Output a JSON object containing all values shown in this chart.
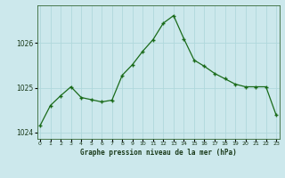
{
  "x": [
    0,
    1,
    2,
    3,
    4,
    5,
    6,
    7,
    8,
    9,
    10,
    11,
    12,
    13,
    14,
    15,
    16,
    17,
    18,
    19,
    20,
    21,
    22,
    23
  ],
  "y": [
    1024.15,
    1024.6,
    1024.82,
    1025.02,
    1024.78,
    1024.73,
    1024.68,
    1024.72,
    1025.28,
    1025.52,
    1025.82,
    1026.08,
    1026.45,
    1026.62,
    1026.1,
    1025.62,
    1025.48,
    1025.32,
    1025.2,
    1025.08,
    1025.02,
    1025.02,
    1025.02,
    1024.38
  ],
  "ylim": [
    1023.85,
    1026.85
  ],
  "yticks": [
    1024,
    1025,
    1026
  ],
  "xticks": [
    0,
    1,
    2,
    3,
    4,
    5,
    6,
    7,
    8,
    9,
    10,
    11,
    12,
    13,
    14,
    15,
    16,
    17,
    18,
    19,
    20,
    21,
    22,
    23
  ],
  "xlim": [
    -0.3,
    23.3
  ],
  "line_color": "#1a6b1a",
  "marker_color": "#1a6b1a",
  "bg_color": "#cce8ec",
  "grid_color": "#b0d8dc",
  "border_color": "#336633",
  "xlabel": "Graphe pression niveau de la mer (hPa)",
  "xlabel_color": "#1a3a1a",
  "tick_label_color": "#1a3a1a",
  "figsize": [
    3.2,
    2.0
  ],
  "dpi": 100
}
